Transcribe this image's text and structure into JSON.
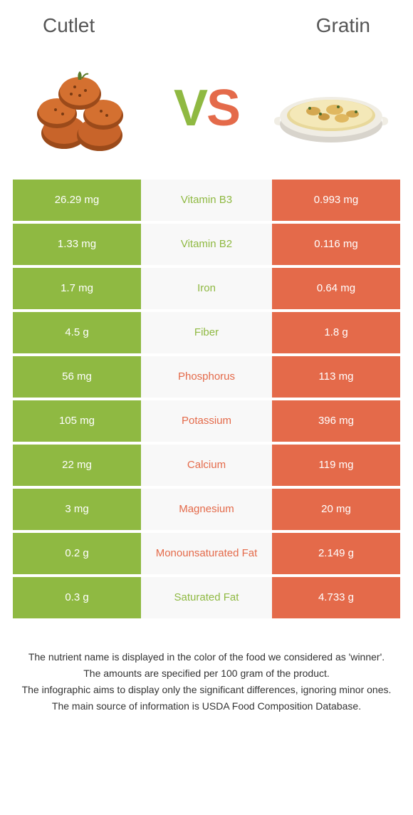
{
  "colors": {
    "left": "#8fb942",
    "right": "#e46a4a",
    "mid_bg": "#f8f8f8"
  },
  "header": {
    "left_title": "Cutlet",
    "right_title": "Gratin"
  },
  "vs": {
    "v": "V",
    "s": "S"
  },
  "rows": [
    {
      "left": "26.29 mg",
      "label": "Vitamin B3",
      "right": "0.993 mg",
      "winner": "left"
    },
    {
      "left": "1.33 mg",
      "label": "Vitamin B2",
      "right": "0.116 mg",
      "winner": "left"
    },
    {
      "left": "1.7 mg",
      "label": "Iron",
      "right": "0.64 mg",
      "winner": "left"
    },
    {
      "left": "4.5 g",
      "label": "Fiber",
      "right": "1.8 g",
      "winner": "left"
    },
    {
      "left": "56 mg",
      "label": "Phosphorus",
      "right": "113 mg",
      "winner": "right"
    },
    {
      "left": "105 mg",
      "label": "Potassium",
      "right": "396 mg",
      "winner": "right"
    },
    {
      "left": "22 mg",
      "label": "Calcium",
      "right": "119 mg",
      "winner": "right"
    },
    {
      "left": "3 mg",
      "label": "Magnesium",
      "right": "20 mg",
      "winner": "right"
    },
    {
      "left": "0.2 g",
      "label": "Monounsaturated Fat",
      "right": "2.149 g",
      "winner": "right"
    },
    {
      "left": "0.3 g",
      "label": "Saturated Fat",
      "right": "4.733 g",
      "winner": "left"
    }
  ],
  "footer": {
    "line1": "The nutrient name is displayed in the color of the food we considered as 'winner'.",
    "line2": "The amounts are specified per 100 gram of the product.",
    "line3": "The infographic aims to display only the significant differences, ignoring minor ones.",
    "line4": "The main source of information is USDA Food Composition Database."
  }
}
